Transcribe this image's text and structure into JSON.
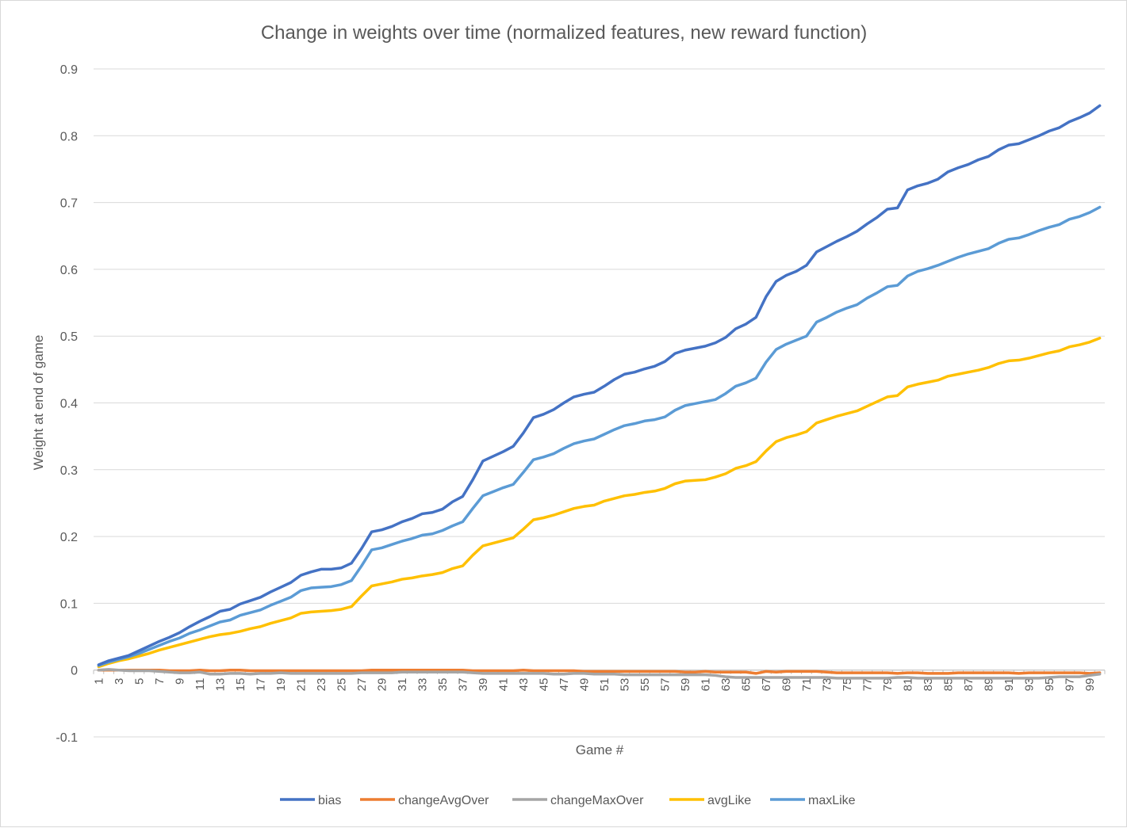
{
  "chart_data": {
    "type": "line",
    "title": "Change in weights over time (normalized features, new reward function)",
    "xlabel": "Game #",
    "ylabel": "Weight at end of game",
    "ylim": [
      -0.1,
      0.9
    ],
    "y_ticks": [
      "-0.1",
      "0",
      "0.1",
      "0.2",
      "0.3",
      "0.4",
      "0.5",
      "0.6",
      "0.7",
      "0.8",
      "0.9"
    ],
    "x_range": [
      1,
      100
    ],
    "x_tick_labels": [
      "1",
      "3",
      "5",
      "7",
      "9",
      "11",
      "13",
      "15",
      "17",
      "19",
      "21",
      "23",
      "25",
      "27",
      "29",
      "31",
      "33",
      "35",
      "37",
      "39",
      "41",
      "43",
      "45",
      "47",
      "49",
      "51",
      "53",
      "55",
      "57",
      "59",
      "61",
      "63",
      "65",
      "67",
      "69",
      "71",
      "73",
      "75",
      "77",
      "79",
      "81",
      "83",
      "85",
      "87",
      "89",
      "91",
      "93",
      "95",
      "97",
      "99"
    ],
    "grid": "horizontal",
    "legend_position": "bottom",
    "series": [
      {
        "name": "bias",
        "color": "#4472c4",
        "values": [
          0.008,
          0.014,
          0.018,
          0.022,
          0.029,
          0.036,
          0.043,
          0.049,
          0.056,
          0.065,
          0.073,
          0.08,
          0.088,
          0.091,
          0.099,
          0.104,
          0.109,
          0.117,
          0.124,
          0.131,
          0.142,
          0.147,
          0.151,
          0.151,
          0.153,
          0.16,
          0.182,
          0.207,
          0.21,
          0.215,
          0.222,
          0.227,
          0.234,
          0.236,
          0.241,
          0.252,
          0.26,
          0.285,
          0.313,
          0.32,
          0.327,
          0.335,
          0.355,
          0.378,
          0.383,
          0.39,
          0.4,
          0.409,
          0.413,
          0.416,
          0.425,
          0.435,
          0.443,
          0.446,
          0.451,
          0.455,
          0.462,
          0.474,
          0.479,
          0.482,
          0.485,
          0.49,
          0.498,
          0.511,
          0.518,
          0.528,
          0.559,
          0.582,
          0.591,
          0.597,
          0.606,
          0.626,
          0.634,
          0.642,
          0.649,
          0.657,
          0.668,
          0.678,
          0.69,
          0.692,
          0.719,
          0.725,
          0.729,
          0.735,
          0.746,
          0.752,
          0.757,
          0.764,
          0.769,
          0.779,
          0.786,
          0.788,
          0.794,
          0.8,
          0.807,
          0.812,
          0.821,
          0.827,
          0.834,
          0.845
        ]
      },
      {
        "name": "changeAvgOver",
        "color": "#ed7d31",
        "values": [
          0.0,
          0.0,
          0.0,
          0.0,
          0.0,
          0.0,
          0.0,
          -0.001,
          -0.001,
          -0.001,
          0.0,
          -0.001,
          -0.001,
          0.0,
          0.0,
          -0.001,
          -0.001,
          -0.001,
          -0.001,
          -0.001,
          -0.001,
          -0.001,
          -0.001,
          -0.001,
          -0.001,
          -0.001,
          -0.001,
          0.0,
          0.0,
          0.0,
          0.0,
          0.0,
          0.0,
          0.0,
          0.0,
          0.0,
          0.0,
          -0.001,
          -0.001,
          -0.001,
          -0.001,
          -0.001,
          0.0,
          -0.001,
          -0.001,
          -0.001,
          -0.001,
          -0.001,
          -0.002,
          -0.002,
          -0.002,
          -0.002,
          -0.002,
          -0.002,
          -0.002,
          -0.002,
          -0.002,
          -0.002,
          -0.003,
          -0.003,
          -0.002,
          -0.003,
          -0.003,
          -0.003,
          -0.003,
          -0.005,
          -0.002,
          -0.003,
          -0.002,
          -0.002,
          -0.002,
          -0.002,
          -0.003,
          -0.004,
          -0.004,
          -0.004,
          -0.004,
          -0.004,
          -0.004,
          -0.005,
          -0.004,
          -0.004,
          -0.005,
          -0.005,
          -0.005,
          -0.004,
          -0.004,
          -0.004,
          -0.004,
          -0.004,
          -0.004,
          -0.005,
          -0.004,
          -0.004,
          -0.004,
          -0.004,
          -0.004,
          -0.004,
          -0.005,
          -0.004
        ]
      },
      {
        "name": "changeMaxOver",
        "color": "#a5a5a5",
        "values": [
          0.0,
          0.001,
          0.0,
          -0.001,
          -0.001,
          -0.001,
          -0.002,
          -0.003,
          -0.004,
          -0.004,
          -0.003,
          -0.006,
          -0.006,
          -0.005,
          -0.005,
          -0.006,
          -0.005,
          -0.005,
          -0.004,
          -0.005,
          -0.005,
          -0.005,
          -0.005,
          -0.005,
          -0.005,
          -0.005,
          -0.004,
          -0.004,
          -0.004,
          -0.004,
          -0.003,
          -0.003,
          -0.003,
          -0.003,
          -0.003,
          -0.003,
          -0.003,
          -0.004,
          -0.005,
          -0.005,
          -0.005,
          -0.005,
          -0.005,
          -0.005,
          -0.005,
          -0.006,
          -0.006,
          -0.005,
          -0.005,
          -0.006,
          -0.006,
          -0.006,
          -0.007,
          -0.007,
          -0.007,
          -0.007,
          -0.007,
          -0.007,
          -0.007,
          -0.007,
          -0.007,
          -0.008,
          -0.01,
          -0.011,
          -0.011,
          -0.011,
          -0.011,
          -0.011,
          -0.011,
          -0.011,
          -0.011,
          -0.011,
          -0.011,
          -0.012,
          -0.012,
          -0.012,
          -0.012,
          -0.012,
          -0.012,
          -0.011,
          -0.011,
          -0.012,
          -0.012,
          -0.012,
          -0.012,
          -0.012,
          -0.012,
          -0.012,
          -0.012,
          -0.012,
          -0.012,
          -0.012,
          -0.012,
          -0.012,
          -0.011,
          -0.01,
          -0.01,
          -0.01,
          -0.008,
          -0.006
        ]
      },
      {
        "name": "avgLike",
        "color": "#ffc000",
        "values": [
          0.005,
          0.01,
          0.014,
          0.017,
          0.021,
          0.025,
          0.03,
          0.034,
          0.038,
          0.042,
          0.046,
          0.05,
          0.053,
          0.055,
          0.058,
          0.062,
          0.065,
          0.07,
          0.074,
          0.078,
          0.085,
          0.087,
          0.088,
          0.089,
          0.091,
          0.095,
          0.111,
          0.126,
          0.129,
          0.132,
          0.136,
          0.138,
          0.141,
          0.143,
          0.146,
          0.152,
          0.156,
          0.172,
          0.186,
          0.19,
          0.194,
          0.198,
          0.211,
          0.225,
          0.228,
          0.232,
          0.237,
          0.242,
          0.245,
          0.247,
          0.253,
          0.257,
          0.261,
          0.263,
          0.266,
          0.268,
          0.272,
          0.279,
          0.283,
          0.284,
          0.285,
          0.289,
          0.294,
          0.302,
          0.306,
          0.312,
          0.328,
          0.342,
          0.348,
          0.352,
          0.357,
          0.37,
          0.375,
          0.38,
          0.384,
          0.388,
          0.395,
          0.402,
          0.409,
          0.411,
          0.424,
          0.428,
          0.431,
          0.434,
          0.44,
          0.443,
          0.446,
          0.449,
          0.453,
          0.459,
          0.463,
          0.464,
          0.467,
          0.471,
          0.475,
          0.478,
          0.484,
          0.487,
          0.491,
          0.497
        ]
      },
      {
        "name": "maxLike",
        "color": "#5b9bd5",
        "values": [
          0.007,
          0.012,
          0.016,
          0.02,
          0.025,
          0.031,
          0.037,
          0.043,
          0.048,
          0.055,
          0.06,
          0.066,
          0.072,
          0.075,
          0.082,
          0.086,
          0.09,
          0.097,
          0.103,
          0.109,
          0.119,
          0.123,
          0.124,
          0.125,
          0.128,
          0.134,
          0.156,
          0.18,
          0.183,
          0.188,
          0.193,
          0.197,
          0.202,
          0.204,
          0.209,
          0.216,
          0.222,
          0.242,
          0.261,
          0.267,
          0.273,
          0.278,
          0.296,
          0.315,
          0.319,
          0.324,
          0.332,
          0.339,
          0.343,
          0.346,
          0.353,
          0.36,
          0.366,
          0.369,
          0.373,
          0.375,
          0.379,
          0.389,
          0.396,
          0.399,
          0.402,
          0.405,
          0.414,
          0.425,
          0.43,
          0.437,
          0.461,
          0.48,
          0.488,
          0.494,
          0.5,
          0.521,
          0.528,
          0.536,
          0.542,
          0.547,
          0.557,
          0.565,
          0.574,
          0.576,
          0.59,
          0.597,
          0.601,
          0.606,
          0.612,
          0.618,
          0.623,
          0.627,
          0.631,
          0.639,
          0.645,
          0.647,
          0.652,
          0.658,
          0.663,
          0.667,
          0.675,
          0.679,
          0.685,
          0.693
        ]
      }
    ]
  }
}
